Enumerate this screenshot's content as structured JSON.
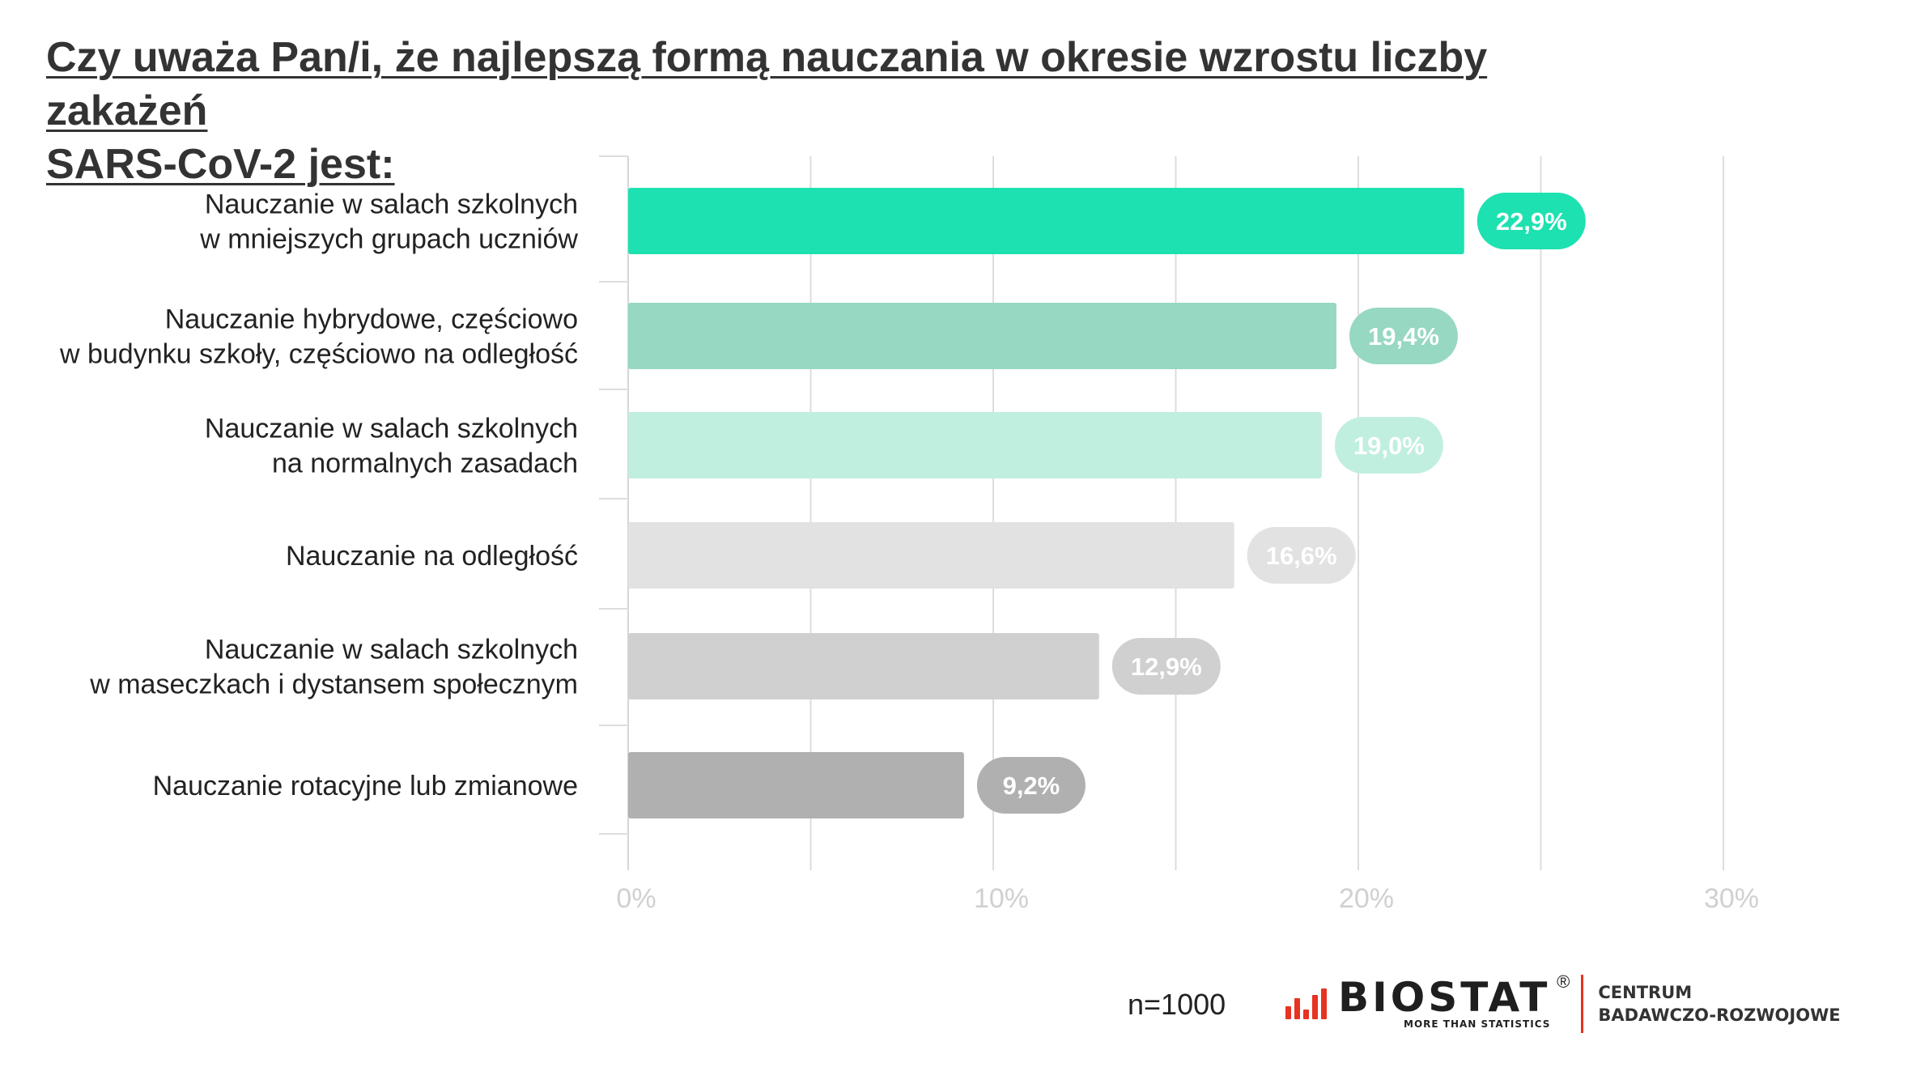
{
  "title": {
    "line1": "Czy uważa Pan/i, że najlepszą formą nauczania w okresie wzrostu liczby zakażeń",
    "line2": "SARS-CoV-2 jest:"
  },
  "chart_data": {
    "type": "bar",
    "orientation": "horizontal",
    "categories": [
      [
        "Nauczanie w salach szkolnych",
        "w mniejszych grupach uczniów"
      ],
      [
        "Nauczanie hybrydowe, częściowo",
        "w budynku szkoły, częściowo na odległość"
      ],
      [
        "Nauczanie w salach szkolnych",
        "na normalnych zasadach"
      ],
      [
        "Nauczanie na odległość"
      ],
      [
        "Nauczanie w salach szkolnych",
        "w maseczkach i dystansem społecznym"
      ],
      [
        "Nauczanie rotacyjne lub zmianowe"
      ]
    ],
    "values": [
      22.9,
      19.4,
      19.0,
      16.6,
      12.9,
      9.2
    ],
    "value_labels": [
      "22,9%",
      "19,4%",
      "19,0%",
      "16,6%",
      "12,9%",
      "9,2%"
    ],
    "bar_colors": [
      "#1de1b0",
      "#96d8c2",
      "#c1efdf",
      "#e2e2e2",
      "#d0d0d0",
      "#b0b0b0"
    ],
    "xlim": [
      0,
      30
    ],
    "x_ticks": [
      0,
      10,
      20,
      30
    ],
    "x_tick_labels": [
      "0%",
      "10%",
      "20%",
      "30%"
    ],
    "minor_gridlines": [
      5,
      15,
      25
    ],
    "grid": true,
    "legend": "none"
  },
  "footer": {
    "sample": "n=1000",
    "logo_word": "BIOSTAT",
    "logo_reg": "®",
    "logo_tagline": "MORE THAN STATISTICS",
    "centre_line1": "CENTRUM",
    "centre_line2": "BADAWCZO-ROZWOJOWE",
    "brand_color": "#e63323"
  }
}
